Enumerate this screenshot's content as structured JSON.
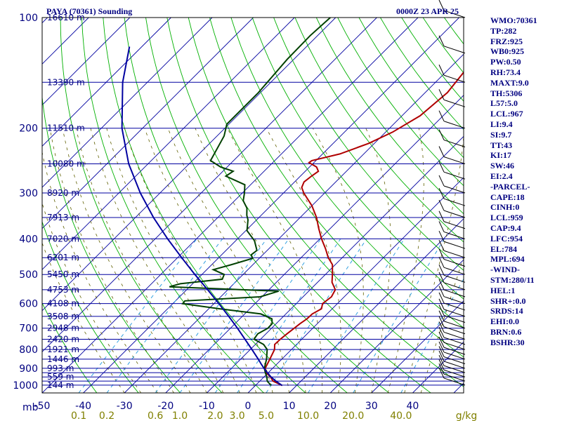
{
  "title": "PAYA (70361) Sounding",
  "datetime": "0000Z 23 APR 25",
  "indices": [
    "WMO:70361",
    "TP:282",
    "FRZ:925",
    "WB0:925",
    "PW:0.50",
    "RH:73.4",
    "MAXT:9.0",
    "TH:5306",
    "L57:5.0",
    "LCL:967",
    "LI:9.4",
    "SI:9.7",
    "TT:43",
    "KI:17",
    "SW:46",
    "EI:2.4",
    "-PARCEL-",
    "CAPE:18",
    "CINH:0",
    "LCL:959",
    "CAP:9.4",
    "LFC:954",
    "EL:784",
    "MPL:694",
    "-WIND-",
    "STM:280/11",
    "HEL:1",
    "SHR+:0.0",
    "SRDS:14",
    "EHI:0.0",
    "BRN:0.6",
    "BSHR:30"
  ],
  "chart_data": {
    "type": "skew-t",
    "pressure_axis_unit": "mb",
    "mixing_ratio_unit": "g/kg",
    "pressure_levels": [
      100,
      200,
      300,
      400,
      500,
      600,
      700,
      800,
      900,
      1000
    ],
    "isobars_drawn": [
      100,
      150,
      200,
      250,
      300,
      350,
      400,
      450,
      500,
      550,
      600,
      650,
      700,
      750,
      800,
      850,
      900,
      925,
      950,
      975,
      1000
    ],
    "temperature_ticks": [
      -50,
      -40,
      -30,
      -20,
      -10,
      0,
      10,
      20,
      30,
      40
    ],
    "mixing_ratio_ticks": [
      "0.1",
      "0.2",
      "0.6",
      "1.0",
      "2.0",
      "3.0",
      "5.0",
      "10.0",
      "20.0",
      "40.0"
    ],
    "mixing_ratio_values": [
      0.1,
      0.2,
      0.6,
      1.0,
      2.0,
      3.0,
      5.0,
      10.0,
      20.0,
      40.0
    ],
    "height_labels": [
      {
        "p": 100,
        "label": "16610 m"
      },
      {
        "p": 150,
        "label": "13390 m"
      },
      {
        "p": 200,
        "label": "11510 m"
      },
      {
        "p": 250,
        "label": "10080 m"
      },
      {
        "p": 300,
        "label": "8920 m"
      },
      {
        "p": 350,
        "label": "7913 m"
      },
      {
        "p": 400,
        "label": "7020 m"
      },
      {
        "p": 450,
        "label": "6201 m"
      },
      {
        "p": 500,
        "label": "5450 m"
      },
      {
        "p": 550,
        "label": "4753 m"
      },
      {
        "p": 600,
        "label": "4108 m"
      },
      {
        "p": 650,
        "label": "3508 m"
      },
      {
        "p": 700,
        "label": "2948 m"
      },
      {
        "p": 750,
        "label": "2420 m"
      },
      {
        "p": 800,
        "label": "1921 m"
      },
      {
        "p": 850,
        "label": "1446 m"
      },
      {
        "p": 900,
        "label": "993 m"
      },
      {
        "p": 950,
        "label": "559 m"
      },
      {
        "p": 1000,
        "label": "144 m"
      }
    ],
    "series": [
      {
        "name": "temperature",
        "color": "#b00000",
        "points": [
          [
            1002,
            6.5
          ],
          [
            975,
            3.2
          ],
          [
            950,
            1.6
          ],
          [
            925,
            -0.5
          ],
          [
            900,
            -1.8
          ],
          [
            850,
            -2.9
          ],
          [
            800,
            -4.1
          ],
          [
            775,
            -5.3
          ],
          [
            750,
            -5.2
          ],
          [
            725,
            -4.9
          ],
          [
            700,
            -4.5
          ],
          [
            680,
            -4.2
          ],
          [
            660,
            -3.7
          ],
          [
            640,
            -3.6
          ],
          [
            620,
            -2.6
          ],
          [
            600,
            -3.6
          ],
          [
            575,
            -3.1
          ],
          [
            550,
            -3.9
          ],
          [
            525,
            -6.5
          ],
          [
            500,
            -8.3
          ],
          [
            470,
            -10.7
          ],
          [
            450,
            -13.4
          ],
          [
            425,
            -16.3
          ],
          [
            400,
            -19.6
          ],
          [
            375,
            -22.8
          ],
          [
            350,
            -26.0
          ],
          [
            325,
            -30.0
          ],
          [
            300,
            -35.1
          ],
          [
            290,
            -36.9
          ],
          [
            280,
            -37.7
          ],
          [
            270,
            -37.3
          ],
          [
            262,
            -36.8
          ],
          [
            255,
            -38.3
          ],
          [
            248,
            -41.2
          ],
          [
            245,
            -41.0
          ],
          [
            235,
            -35.8
          ],
          [
            220,
            -31.4
          ],
          [
            205,
            -28.3
          ],
          [
            185,
            -25.6
          ],
          [
            160,
            -24.6
          ],
          [
            130,
            -26.2
          ],
          [
            112,
            -28.3
          ],
          [
            100,
            -29.8
          ]
        ]
      },
      {
        "name": "dewpoint",
        "color": "#004000",
        "points": [
          [
            1002,
            3.8
          ],
          [
            975,
            1.8
          ],
          [
            950,
            0.7
          ],
          [
            925,
            -0.7
          ],
          [
            900,
            -2.0
          ],
          [
            850,
            -3.7
          ],
          [
            800,
            -5.9
          ],
          [
            775,
            -8.0
          ],
          [
            750,
            -11.6
          ],
          [
            725,
            -12.0
          ],
          [
            700,
            -10.9
          ],
          [
            680,
            -11.0
          ],
          [
            660,
            -12.2
          ],
          [
            640,
            -16.1
          ],
          [
            620,
            -27.3
          ],
          [
            600,
            -37.6
          ],
          [
            590,
            -37.7
          ],
          [
            575,
            -20.4
          ],
          [
            555,
            -17.3
          ],
          [
            540,
            -44.9
          ],
          [
            530,
            -43.0
          ],
          [
            515,
            -33.9
          ],
          [
            500,
            -34.6
          ],
          [
            485,
            -38.4
          ],
          [
            470,
            -35.2
          ],
          [
            452,
            -31.6
          ],
          [
            442,
            -32.8
          ],
          [
            430,
            -32.5
          ],
          [
            405,
            -35.4
          ],
          [
            380,
            -39.7
          ],
          [
            355,
            -42.1
          ],
          [
            345,
            -43.5
          ],
          [
            330,
            -45.2
          ],
          [
            315,
            -47.9
          ],
          [
            300,
            -49.5
          ],
          [
            285,
            -51.4
          ],
          [
            270,
            -58.1
          ],
          [
            262,
            -57.5
          ],
          [
            255,
            -61.6
          ],
          [
            245,
            -65.6
          ],
          [
            210,
            -68.3
          ],
          [
            195,
            -70.5
          ],
          [
            160,
            -70.5
          ],
          [
            130,
            -71.6
          ],
          [
            112,
            -71.8
          ],
          [
            100,
            -71.3
          ]
        ]
      },
      {
        "name": "parcel",
        "color": "#0000a0",
        "points": [
          [
            1002,
            6.5
          ],
          [
            975,
            3.9
          ],
          [
            960,
            2.6
          ],
          [
            950,
            1.7
          ],
          [
            925,
            -0.2
          ],
          [
            900,
            -2.1
          ],
          [
            875,
            -3.9
          ],
          [
            850,
            -5.7
          ],
          [
            800,
            -9.6
          ],
          [
            750,
            -13.8
          ],
          [
            700,
            -18.3
          ],
          [
            650,
            -23.3
          ],
          [
            600,
            -28.8
          ],
          [
            550,
            -34.9
          ],
          [
            500,
            -41.7
          ],
          [
            450,
            -49.0
          ],
          [
            400,
            -57.0
          ],
          [
            350,
            -65.6
          ],
          [
            300,
            -74.8
          ],
          [
            250,
            -84.7
          ],
          [
            200,
            -95.0
          ],
          [
            150,
            -106.0
          ],
          [
            120,
            -113.0
          ]
        ]
      }
    ],
    "wind_barbs_shown": true
  }
}
